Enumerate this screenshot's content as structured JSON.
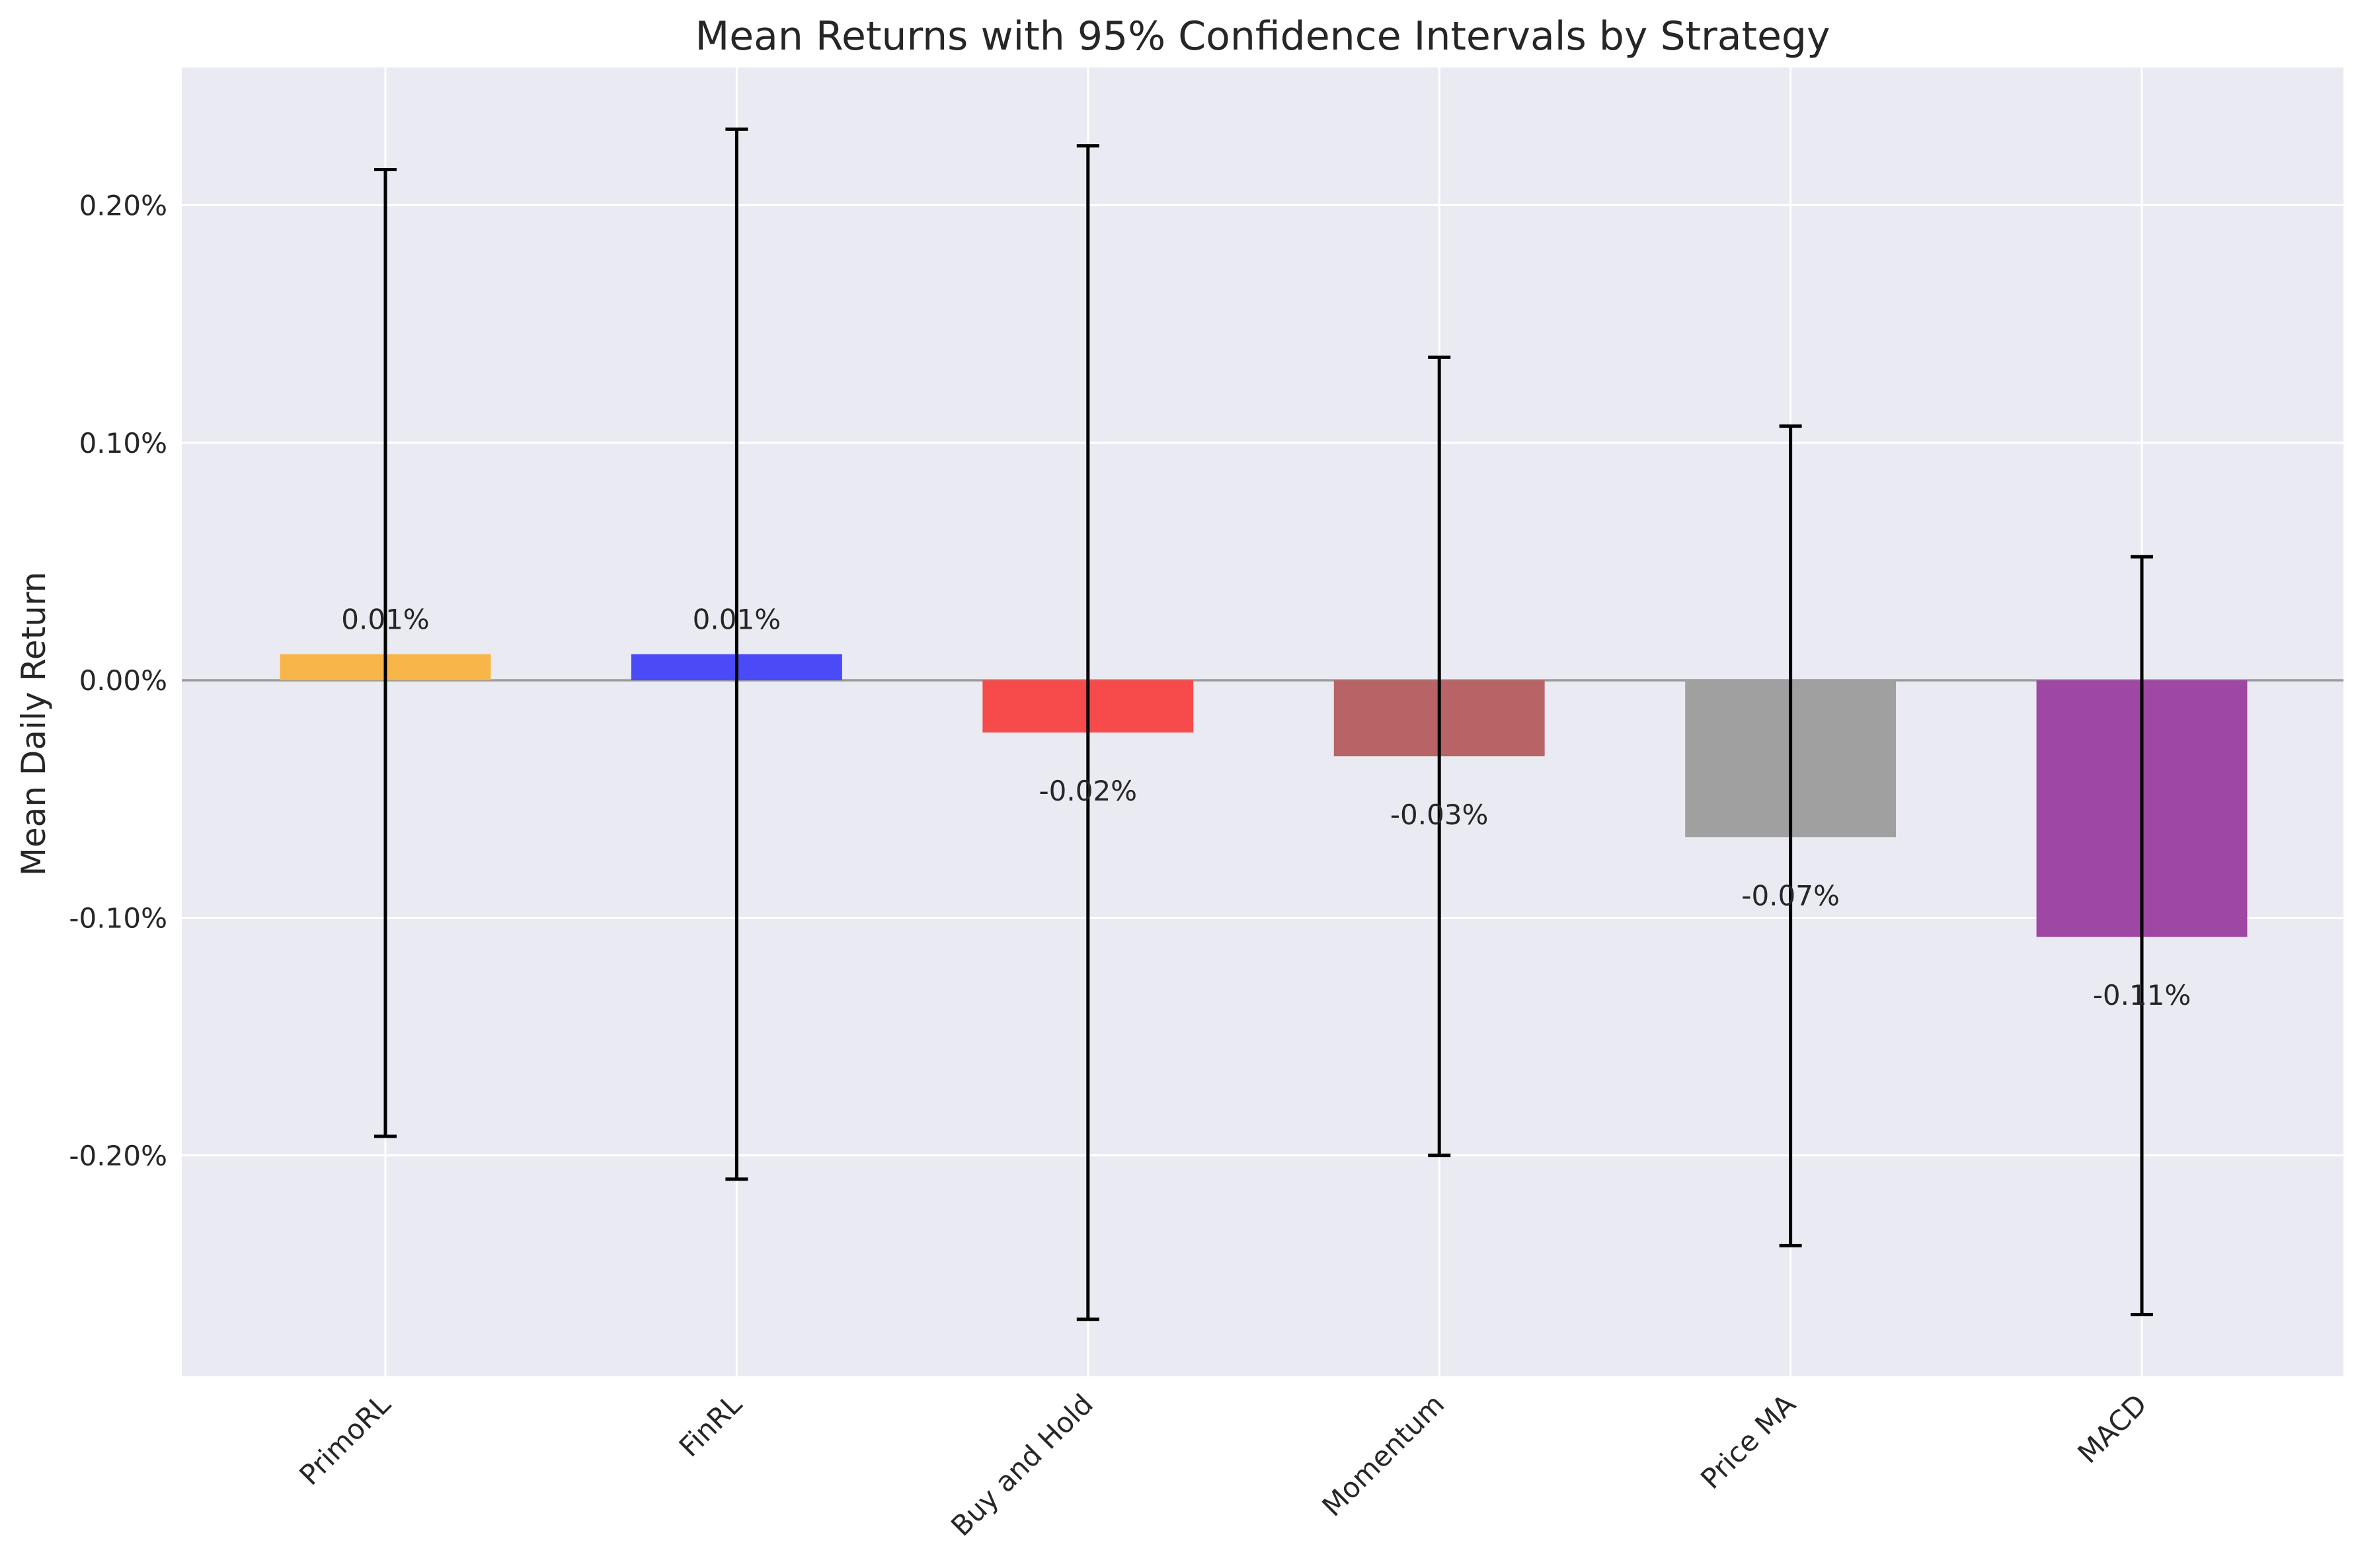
{
  "chart_data": {
    "type": "bar",
    "title": "Mean Returns with 95% Confidence Intervals by Strategy",
    "xlabel": "",
    "ylabel": "Mean Daily Return",
    "categories": [
      "PrimoRL",
      "FinRL",
      "Buy and Hold",
      "Momentum",
      "Price MA",
      "MACD"
    ],
    "values": [
      0.011,
      0.011,
      -0.022,
      -0.032,
      -0.066,
      -0.108
    ],
    "ci_upper": [
      0.215,
      0.232,
      0.225,
      0.136,
      0.107,
      0.052
    ],
    "ci_lower": [
      -0.192,
      -0.21,
      -0.269,
      -0.2,
      -0.238,
      -0.267
    ],
    "data_labels": [
      "0.01%",
      "0.01%",
      "-0.02%",
      "-0.03%",
      "-0.07%",
      "-0.11%"
    ],
    "colors": [
      "#f7b54a",
      "#4a4af7",
      "#f74a4a",
      "#b86466",
      "#a0a0a0",
      "#9e47a3"
    ],
    "yticks": [
      -0.2,
      -0.1,
      0.0,
      0.1,
      0.2
    ],
    "ytick_labels": [
      "-0.20%",
      "-0.10%",
      "0.00%",
      "0.10%",
      "0.20%"
    ],
    "ylim": [
      -0.293,
      0.258
    ],
    "grid": true,
    "background_color": "#eaeaf2"
  }
}
